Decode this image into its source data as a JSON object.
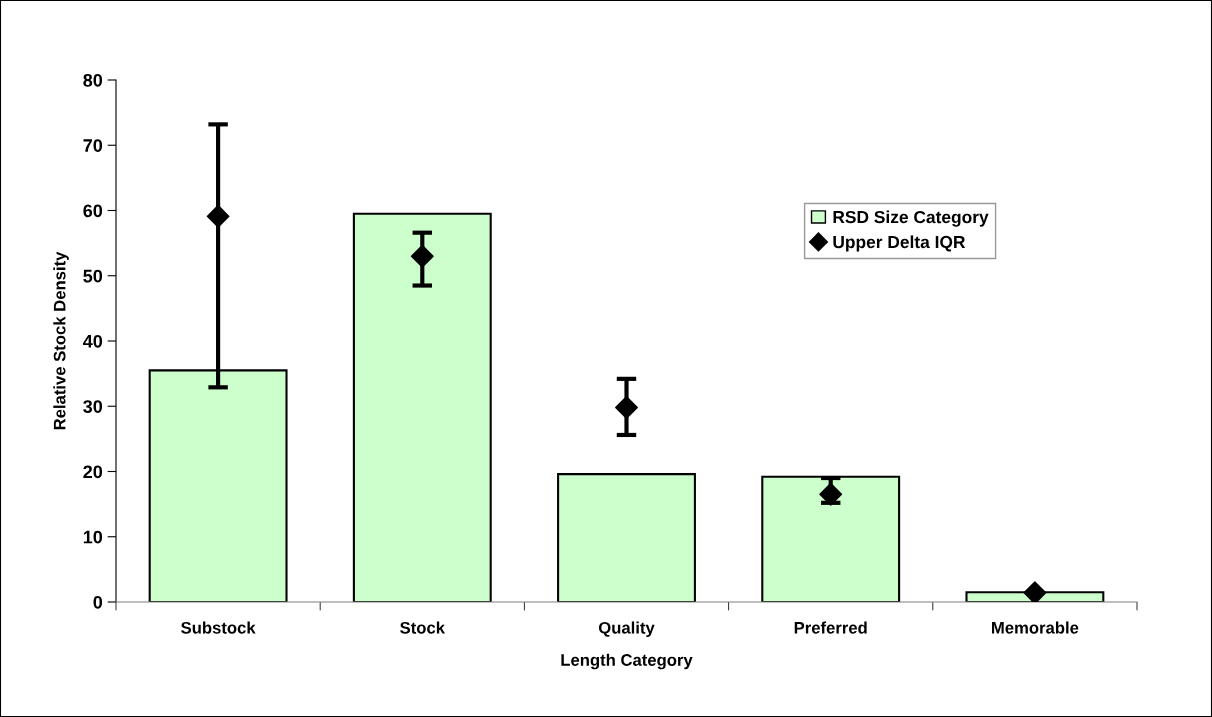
{
  "chart_data": {
    "type": "bar",
    "xlabel": "Length Category",
    "ylabel": "Relative Stock Density",
    "categories": [
      "Substock",
      "Stock",
      "Quality",
      "Preferred",
      "Memorable"
    ],
    "series": [
      {
        "name": "RSD Size Category",
        "color": "#ccffcc",
        "values": [
          35.5,
          59.5,
          19.6,
          19.2,
          1.5
        ]
      },
      {
        "name": "Upper Delta IQR",
        "type": "scatter",
        "color": "#000000",
        "marker": "diamond",
        "values": [
          59.1,
          53.0,
          29.8,
          16.5,
          1.4
        ],
        "errors": [
          [
            32.9,
            73.2
          ],
          [
            48.5,
            56.6
          ],
          [
            25.6,
            34.2
          ],
          [
            15.2,
            19.0
          ],
          null
        ]
      }
    ],
    "ylim": [
      0,
      80
    ],
    "yticks": [
      0,
      10,
      20,
      30,
      40,
      50,
      60,
      70,
      80
    ],
    "grid": false,
    "legend": "top right"
  }
}
